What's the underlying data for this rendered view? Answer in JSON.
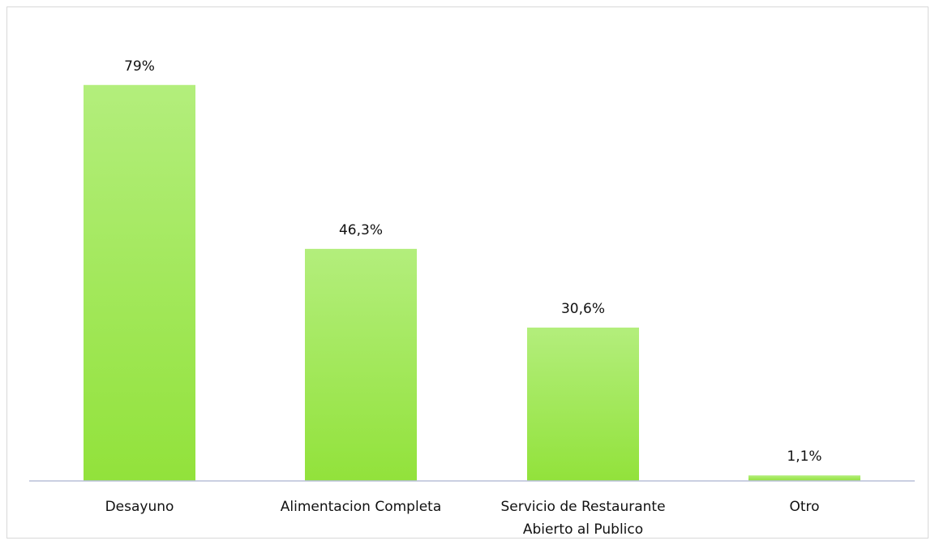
{
  "chart_data": {
    "type": "bar",
    "title": "",
    "xlabel": "",
    "ylabel": "",
    "categories": [
      "Desayuno",
      "Alimentacion Completa",
      "Servicio de Restaurante Abierto al Publico",
      "Otro"
    ],
    "category_lines": [
      [
        "Desayuno"
      ],
      [
        "Alimentacion Completa"
      ],
      [
        "Servicio de Restaurante",
        "Abierto al Publico"
      ],
      [
        "Otro"
      ]
    ],
    "values": [
      79,
      46.3,
      30.6,
      1.1
    ],
    "value_labels": [
      "79%",
      "46,3%",
      "30,6%",
      "1,1%"
    ],
    "unit": "%",
    "ylim": [
      0,
      100
    ],
    "grid": false,
    "legend": "none",
    "colors": {
      "bar_top": "#b3ee7c",
      "bar_bottom": "#92e23b",
      "axis": "#b8bfd8",
      "border": "#d9d9d9"
    }
  }
}
